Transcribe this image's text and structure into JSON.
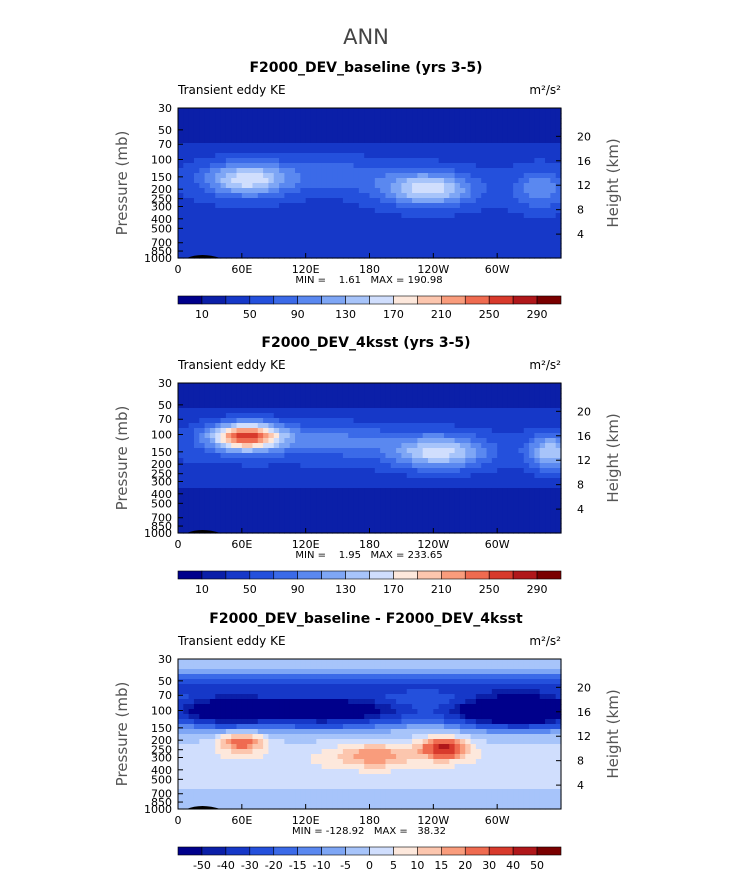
{
  "page_title": "ANN",
  "colors": {
    "seq_levels": [
      "#00008b",
      "#0b1fa8",
      "#1638c8",
      "#2450dc",
      "#3b6ae8",
      "#5a88f0",
      "#7ea6f5",
      "#a7c4fa",
      "#d0defd",
      "#fde8dc",
      "#fcc6ae",
      "#f99c7c",
      "#ef6b50",
      "#d83a2c",
      "#b0171a",
      "#7a0000"
    ],
    "diff_levels": [
      "#00008b",
      "#0b1fa8",
      "#1638c8",
      "#2450dc",
      "#3b6ae8",
      "#5a88f0",
      "#7ea6f5",
      "#a7c4fa",
      "#d0defd",
      "#fde8dc",
      "#fcc6ae",
      "#f99c7c",
      "#ef6b50",
      "#d83a2c",
      "#b0171a",
      "#7a0000"
    ],
    "topo": "#000000"
  },
  "chart_data": [
    {
      "type": "heatmap",
      "title": "F2000_DEV_baseline (yrs 3-5)",
      "variable_label": "Transient eddy KE",
      "units_label": "m²/s²",
      "ylabel_left": "Pressure (mb)",
      "ylabel_right": "Height (km)",
      "x_ticks": [
        "0",
        "60E",
        "120E",
        "180",
        "120W",
        "60W"
      ],
      "x_tick_values": [
        0,
        60,
        120,
        180,
        240,
        300
      ],
      "xlim": [
        0,
        360
      ],
      "y_ticks": [
        "30",
        "50",
        "70",
        "100",
        "150",
        "200",
        "250",
        "300",
        "400",
        "500",
        "700",
        "850",
        "1000"
      ],
      "y_tick_values": [
        30,
        50,
        70,
        100,
        150,
        200,
        250,
        300,
        400,
        500,
        700,
        850,
        1000
      ],
      "ylim": [
        30,
        1000
      ],
      "height_ticks": [
        "20",
        "16",
        "12",
        "8",
        "4"
      ],
      "height_tick_values": [
        20,
        16,
        12,
        8,
        4
      ],
      "stats_label": "MIN =    1.61   MAX = 190.98",
      "min": 1.61,
      "max": 190.98,
      "colorbar_labels": [
        "10",
        "50",
        "90",
        "130",
        "170",
        "210",
        "250",
        "290"
      ],
      "contour_levels": [
        10,
        30,
        50,
        70,
        90,
        110,
        130,
        150,
        170,
        190,
        210,
        230,
        250,
        270,
        290
      ],
      "palette": "seq_levels",
      "maxima": [
        {
          "lon": 65,
          "p": 150,
          "value": 190
        },
        {
          "lon": 235,
          "p": 200,
          "value": 175
        },
        {
          "lon": 340,
          "p": 200,
          "value": 150
        }
      ]
    },
    {
      "type": "heatmap",
      "title": "F2000_DEV_4ksst (yrs 3-5)",
      "variable_label": "Transient eddy KE",
      "units_label": "m²/s²",
      "ylabel_left": "Pressure (mb)",
      "ylabel_right": "Height (km)",
      "x_ticks": [
        "0",
        "60E",
        "120E",
        "180",
        "120W",
        "60W"
      ],
      "x_tick_values": [
        0,
        60,
        120,
        180,
        240,
        300
      ],
      "xlim": [
        0,
        360
      ],
      "y_ticks": [
        "30",
        "50",
        "70",
        "100",
        "150",
        "200",
        "250",
        "300",
        "400",
        "500",
        "700",
        "850",
        "1000"
      ],
      "y_tick_values": [
        30,
        50,
        70,
        100,
        150,
        200,
        250,
        300,
        400,
        500,
        700,
        850,
        1000
      ],
      "ylim": [
        30,
        1000
      ],
      "height_ticks": [
        "20",
        "16",
        "12",
        "8",
        "4"
      ],
      "height_tick_values": [
        20,
        16,
        12,
        8,
        4
      ],
      "stats_label": "MIN =    1.95   MAX = 233.65",
      "min": 1.95,
      "max": 233.65,
      "colorbar_labels": [
        "10",
        "50",
        "90",
        "130",
        "170",
        "210",
        "250",
        "290"
      ],
      "contour_levels": [
        10,
        30,
        50,
        70,
        90,
        110,
        130,
        150,
        170,
        190,
        210,
        230,
        250,
        270,
        290
      ],
      "palette": "seq_levels",
      "maxima": [
        {
          "lon": 65,
          "p": 100,
          "value": 233
        },
        {
          "lon": 240,
          "p": 150,
          "value": 175
        },
        {
          "lon": 350,
          "p": 150,
          "value": 165
        }
      ]
    },
    {
      "type": "heatmap",
      "title": "F2000_DEV_baseline - F2000_DEV_4ksst",
      "variable_label": "Transient eddy KE",
      "units_label": "m²/s²",
      "ylabel_left": "Pressure (mb)",
      "ylabel_right": "Height (km)",
      "x_ticks": [
        "0",
        "60E",
        "120E",
        "180",
        "120W",
        "60W"
      ],
      "x_tick_values": [
        0,
        60,
        120,
        180,
        240,
        300
      ],
      "xlim": [
        0,
        360
      ],
      "y_ticks": [
        "30",
        "50",
        "70",
        "100",
        "150",
        "200",
        "250",
        "300",
        "400",
        "500",
        "700",
        "850",
        "1000"
      ],
      "y_tick_values": [
        30,
        50,
        70,
        100,
        150,
        200,
        250,
        300,
        400,
        500,
        700,
        850,
        1000
      ],
      "ylim": [
        30,
        1000
      ],
      "height_ticks": [
        "20",
        "16",
        "12",
        "8",
        "4"
      ],
      "height_tick_values": [
        20,
        16,
        12,
        8,
        4
      ],
      "stats_label": "MIN = -128.92   MAX =   38.32",
      "min": -128.92,
      "max": 38.32,
      "colorbar_labels": [
        "-50",
        "-40",
        "-30",
        "-20",
        "-15",
        "-10",
        "-5",
        "0",
        "5",
        "10",
        "15",
        "20",
        "30",
        "40",
        "50"
      ],
      "contour_levels": [
        -50,
        -40,
        -30,
        -20,
        -15,
        -10,
        -5,
        0,
        5,
        10,
        15,
        20,
        30,
        40,
        50
      ],
      "palette": "diff_levels",
      "maxima": [
        {
          "lon": 250,
          "p": 250,
          "value": 38
        },
        {
          "lon": 65,
          "p": 200,
          "value": 20
        },
        {
          "lon": 300,
          "p": 100,
          "value": -129
        }
      ]
    }
  ]
}
